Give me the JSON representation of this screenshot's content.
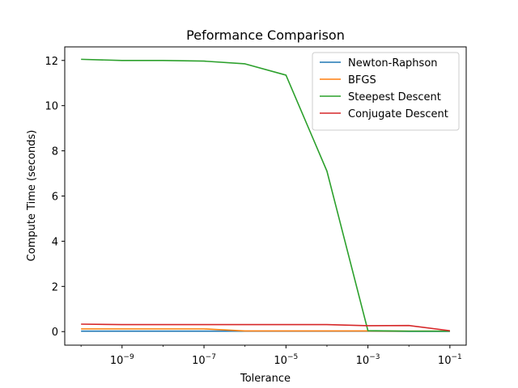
{
  "chart_data": {
    "type": "line",
    "title": "Peformance Comparison",
    "xlabel": "Tolerance",
    "ylabel": "Compute Time (seconds)",
    "xscale": "log",
    "x": [
      1e-10,
      1e-09,
      1e-08,
      1e-07,
      1e-06,
      1e-05,
      0.0001,
      0.001,
      0.01,
      0.1
    ],
    "xlim": [
      4e-11,
      0.25
    ],
    "ylim": [
      -0.6,
      12.6
    ],
    "xticks": [
      {
        "value": 1e-09,
        "base": "10",
        "exp": "−9"
      },
      {
        "value": 1e-07,
        "base": "10",
        "exp": "−7"
      },
      {
        "value": 1e-05,
        "base": "10",
        "exp": "−5"
      },
      {
        "value": 0.001,
        "base": "10",
        "exp": "−3"
      },
      {
        "value": 0.1,
        "base": "10",
        "exp": "−1"
      }
    ],
    "yticks": [
      {
        "value": 0,
        "label": "0"
      },
      {
        "value": 2,
        "label": "2"
      },
      {
        "value": 4,
        "label": "4"
      },
      {
        "value": 6,
        "label": "6"
      },
      {
        "value": 8,
        "label": "8"
      },
      {
        "value": 10,
        "label": "10"
      },
      {
        "value": 12,
        "label": "12"
      }
    ],
    "grid": false,
    "legend_position": "top-right",
    "series": [
      {
        "name": "Newton-Raphson",
        "color": "#1f77b4",
        "values": [
          0.02,
          0.02,
          0.02,
          0.02,
          0.02,
          0.02,
          0.02,
          0.02,
          0.01,
          0.01
        ]
      },
      {
        "name": "BFGS",
        "color": "#ff7f0e",
        "values": [
          0.12,
          0.12,
          0.12,
          0.12,
          0.03,
          0.03,
          0.03,
          0.03,
          0.02,
          0.02
        ]
      },
      {
        "name": "Steepest Descent",
        "color": "#2ca02c",
        "values": [
          12.05,
          12.0,
          12.0,
          11.97,
          11.85,
          11.35,
          7.1,
          0.04,
          0.02,
          0.02
        ]
      },
      {
        "name": "Conjugate Descent",
        "color": "#d62728",
        "values": [
          0.33,
          0.31,
          0.31,
          0.31,
          0.31,
          0.31,
          0.31,
          0.26,
          0.27,
          0.04
        ]
      }
    ]
  }
}
